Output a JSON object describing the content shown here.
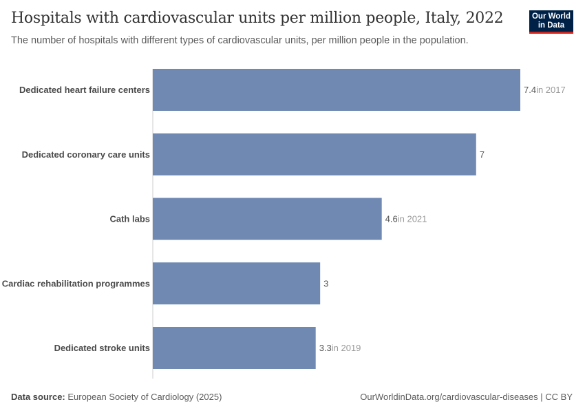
{
  "title": "Hospitals with cardiovascular units per million people, Italy, 2022",
  "subtitle": "The number of hospitals with different types of cardiovascular units, per million people in the population.",
  "logo": "Our World in Data",
  "footer": {
    "source_label": "Data source:",
    "source": "European Society of Cardiology (2025)",
    "url": "OurWorldinData.org/cardiovascular-diseases | CC BY"
  },
  "colors": {
    "bar": "#6f89b3"
  },
  "chart_data": {
    "type": "bar",
    "orientation": "horizontal",
    "categories": [
      "Dedicated heart failure centers",
      "Dedicated coronary care units",
      "Cath labs",
      "Cardiac rehabilitation programmes",
      "Dedicated stroke units"
    ],
    "values": [
      7.4,
      6.51,
      4.61,
      3.37,
      3.28
    ],
    "value_labels": [
      "7.4",
      "7",
      "4.6",
      "3",
      "3.3"
    ],
    "year_notes": [
      "in 2017",
      "",
      "in 2021",
      "",
      "in 2019"
    ],
    "xlim": [
      0,
      7.4
    ],
    "grid": false
  }
}
